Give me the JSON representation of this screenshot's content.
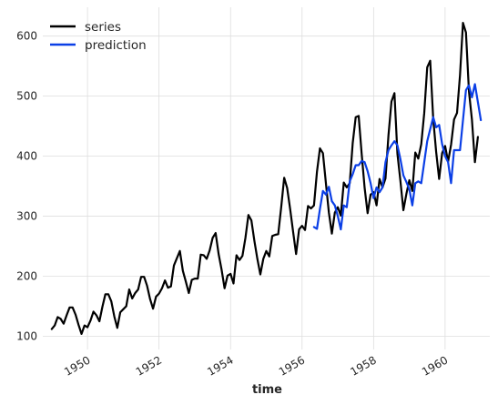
{
  "chart_data": {
    "type": "line",
    "xlabel": "time",
    "ylabel": "",
    "xlim": [
      1948.75,
      1961.25
    ],
    "ylim": [
      78,
      648
    ],
    "x_ticks": [
      1950,
      1952,
      1954,
      1956,
      1958,
      1960
    ],
    "x_tick_labels": [
      "1950",
      "1952",
      "1954",
      "1956",
      "1958",
      "1960"
    ],
    "y_ticks": [
      100,
      200,
      300,
      400,
      500,
      600
    ],
    "y_tick_labels": [
      "100",
      "200",
      "300",
      "400",
      "500",
      "600"
    ],
    "grid": true,
    "legend_position": "top-left",
    "series": [
      {
        "name": "series",
        "color": "#000000",
        "start": "1949-01",
        "frequency": "monthly",
        "values": [
          112,
          118,
          132,
          129,
          121,
          135,
          148,
          148,
          136,
          119,
          104,
          118,
          115,
          126,
          141,
          135,
          125,
          149,
          170,
          170,
          158,
          133,
          114,
          140,
          145,
          150,
          178,
          163,
          172,
          178,
          199,
          199,
          184,
          162,
          146,
          166,
          171,
          180,
          193,
          181,
          183,
          218,
          230,
          242,
          209,
          191,
          172,
          194,
          196,
          196,
          236,
          235,
          229,
          243,
          264,
          272,
          237,
          211,
          180,
          201,
          204,
          188,
          235,
          227,
          234,
          264,
          302,
          293,
          259,
          229,
          203,
          229,
          242,
          233,
          267,
          269,
          270,
          315,
          364,
          347,
          312,
          274,
          237,
          278,
          284,
          277,
          317,
          313,
          318,
          374,
          413,
          405,
          355,
          306,
          271,
          306,
          315,
          301,
          356,
          348,
          355,
          422,
          465,
          467,
          404,
          347,
          305,
          336,
          340,
          318,
          362,
          348,
          363,
          435,
          491,
          505,
          404,
          359,
          310,
          337,
          360,
          342,
          406,
          396,
          420,
          472,
          548,
          559,
          463,
          407,
          362,
          405,
          417,
          391,
          419,
          461,
          472,
          535,
          622,
          606,
          508,
          461,
          390,
          432
        ]
      },
      {
        "name": "prediction",
        "color": "#0b3fe6",
        "start": "1956-05",
        "frequency": "monthly",
        "values": [
          282,
          279,
          312,
          342,
          336,
          349,
          325,
          318,
          300,
          278,
          318,
          315,
          358,
          370,
          385,
          385,
          392,
          390,
          375,
          355,
          330,
          348,
          340,
          348,
          390,
          410,
          418,
          425,
          418,
          395,
          368,
          357,
          345,
          318,
          355,
          358,
          355,
          390,
          425,
          445,
          465,
          448,
          452,
          420,
          400,
          390,
          355,
          410,
          410,
          410,
          460,
          510,
          518,
          498,
          520,
          490,
          460
        ]
      }
    ]
  }
}
